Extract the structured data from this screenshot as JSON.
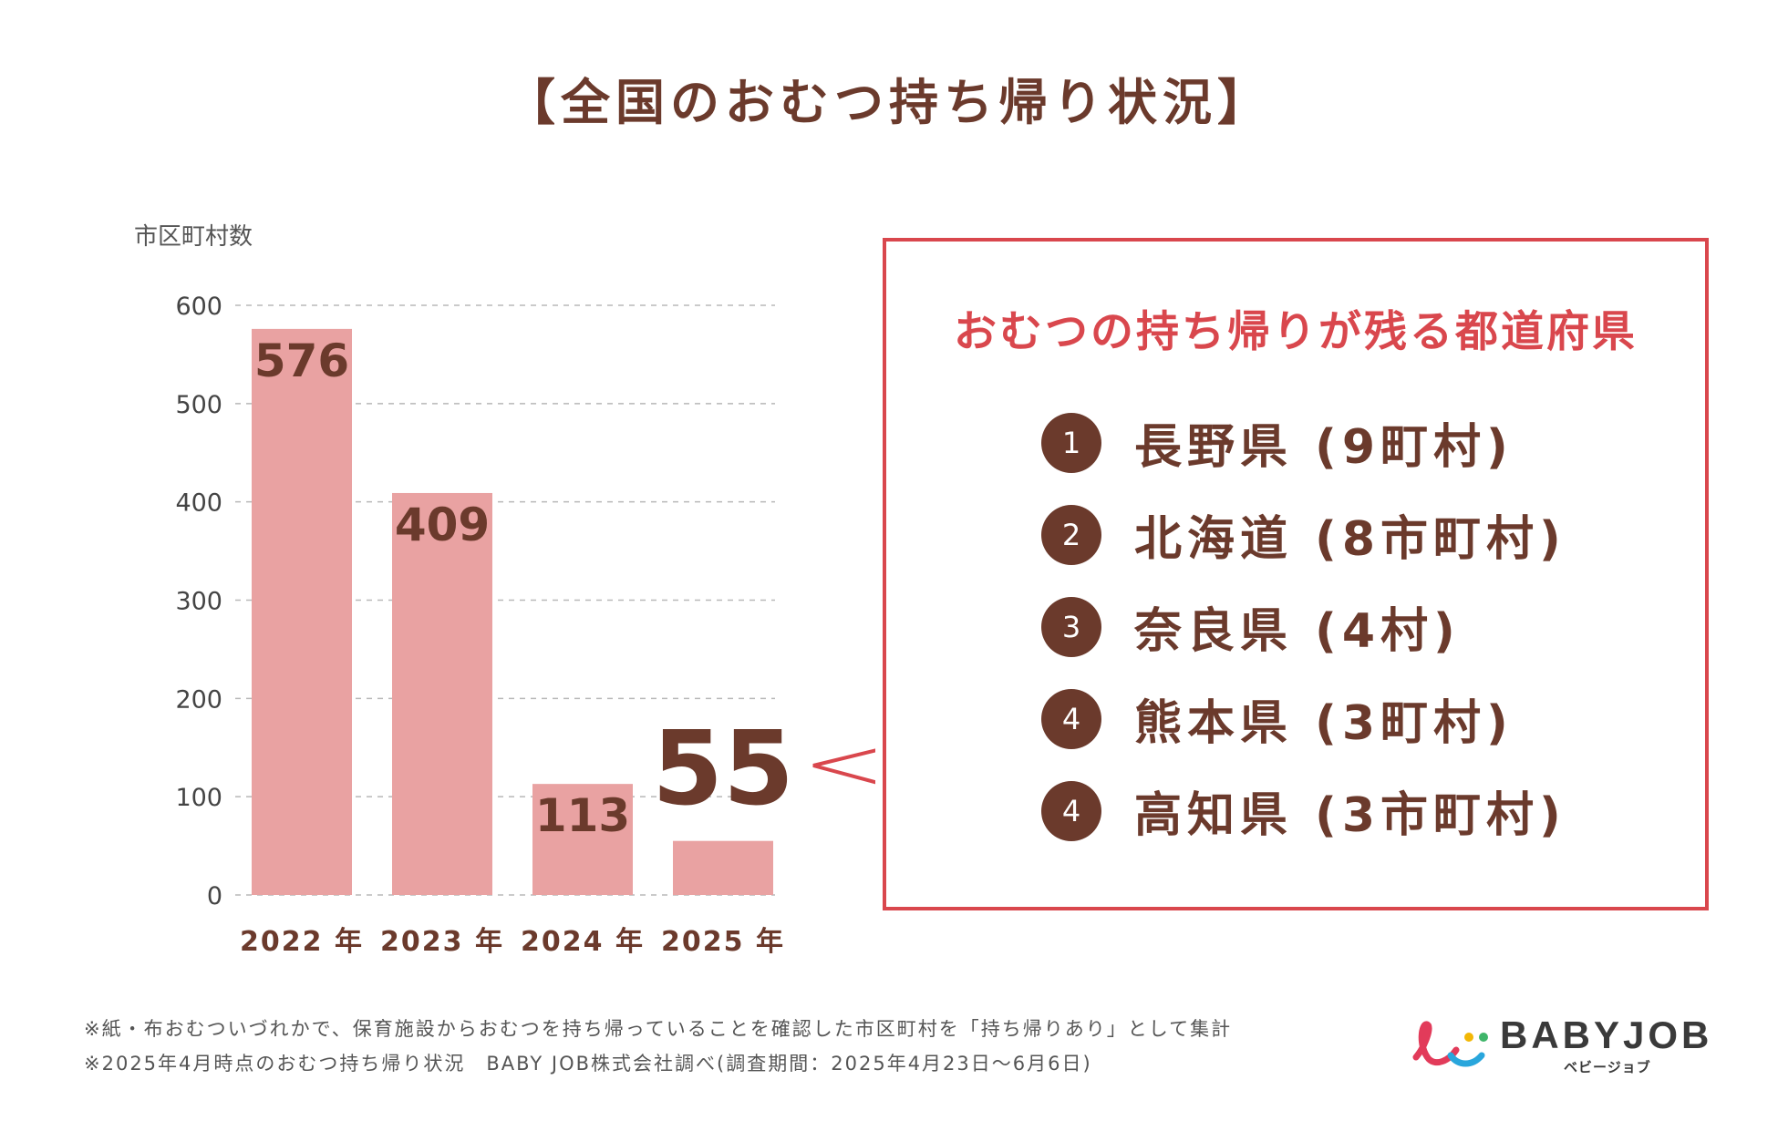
{
  "chart_data": {
    "type": "bar",
    "title": "【全国のおむつ持ち帰り状況】",
    "ylabel": "市区町村数",
    "xlabel": "",
    "ylim": [
      0,
      600
    ],
    "yticks": [
      "0",
      "100",
      "200",
      "300",
      "400",
      "500",
      "600"
    ],
    "grid": true,
    "categories": [
      "2022 年",
      "2023 年",
      "2024 年",
      "2025 年"
    ],
    "values": [
      576,
      409,
      113,
      55
    ],
    "data_labels": [
      "576",
      "409",
      "113",
      "55"
    ],
    "highlight_index": 3
  },
  "colors": {
    "bar": "#e9a2a2",
    "brown": "#6b3a2c",
    "accent": "#d9474d",
    "grid": "#b8b8b8"
  },
  "callout": {
    "title": "おむつの持ち帰りが残る都道府県",
    "items": [
      {
        "rank": "1",
        "text": "長野県 (9町村)"
      },
      {
        "rank": "2",
        "text": "北海道 (8市町村)"
      },
      {
        "rank": "3",
        "text": "奈良県 (4村)"
      },
      {
        "rank": "4",
        "text": "熊本県 (3町村)"
      },
      {
        "rank": "4",
        "text": "高知県 (3市町村)"
      }
    ]
  },
  "notes": {
    "line1": "※紙・布おむついづれかで、保育施設からおむつを持ち帰っていることを確認した市区町村を「持ち帰りあり」として集計",
    "line2": "※2025年4月時点のおむつ持ち帰り状況　BABY JOB株式会社調べ(調査期間：2025年4月23日〜6月6日)"
  },
  "logo": {
    "name": "BABYJOB",
    "kana": "ベビージョブ"
  }
}
